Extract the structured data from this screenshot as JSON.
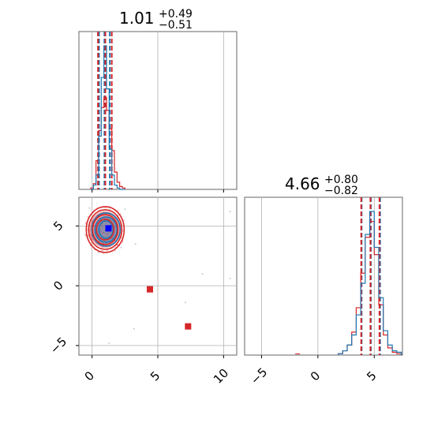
{
  "chart_data": {
    "type": "corner",
    "parameters": [
      "p0",
      "p1"
    ],
    "colors": {
      "blue": "#1f77b4",
      "red": "#d62728",
      "truth": "#0000ff",
      "grid": "#b0b0b0",
      "frame": "#666666"
    },
    "panels": {
      "p0_hist": {
        "type": "histogram",
        "title": {
          "median": "1.01",
          "plus": "+0.49",
          "minus": "−0.51"
        },
        "xlim": [
          -1.0,
          11.0
        ],
        "xticks": [
          0,
          5,
          10
        ],
        "quantile_lines": {
          "blue": [
            0.53,
            0.94,
            1.35
          ],
          "red": [
            0.45,
            1.01,
            1.5
          ]
        },
        "blue_hist": {
          "x": [
            0.0,
            0.2,
            0.4,
            0.6,
            0.8,
            1.0,
            1.2,
            1.4,
            1.6,
            1.8,
            2.0,
            2.2,
            2.4
          ],
          "y": [
            0.0,
            0.03,
            0.1,
            0.37,
            0.78,
            1.0,
            0.7,
            0.28,
            0.1,
            0.03,
            0.01,
            0.0,
            0.0
          ]
        },
        "red_hist": {
          "x": [
            0.0,
            0.2,
            0.4,
            0.6,
            0.8,
            1.0,
            1.2,
            1.4,
            1.6,
            1.8,
            2.0,
            2.2,
            2.4
          ],
          "y": [
            0.01,
            0.04,
            0.2,
            0.41,
            0.57,
            0.64,
            0.55,
            0.42,
            0.27,
            0.12,
            0.05,
            0.02,
            0.01
          ]
        }
      },
      "p1_hist": {
        "type": "histogram",
        "title": {
          "median": "4.66",
          "plus": "+0.80",
          "minus": "−0.82"
        },
        "xlim": [
          -6.5,
          7.5
        ],
        "xticks": [
          -5,
          0,
          5
        ],
        "quantile_lines": {
          "blue": [
            3.88,
            4.7,
            5.52
          ],
          "red": [
            3.84,
            4.66,
            5.46
          ]
        },
        "blue_hist": {
          "x": [
            2.0,
            2.4,
            2.8,
            3.2,
            3.6,
            4.0,
            4.4,
            4.8,
            5.2,
            5.6,
            6.0,
            6.4,
            6.8,
            7.2
          ],
          "y": [
            0.01,
            0.03,
            0.07,
            0.14,
            0.28,
            0.5,
            0.84,
            1.0,
            0.75,
            0.4,
            0.17,
            0.07,
            0.03,
            0.02
          ]
        },
        "red_hist": {
          "x": [
            2.0,
            2.4,
            2.8,
            3.2,
            3.6,
            4.0,
            4.4,
            4.8,
            5.2,
            5.6,
            6.0,
            6.4,
            6.8,
            7.2
          ],
          "y": [
            0.01,
            0.03,
            0.07,
            0.16,
            0.33,
            0.57,
            0.82,
            0.93,
            0.7,
            0.35,
            0.14,
            0.05,
            0.02,
            0.01
          ]
        },
        "outlier_x": -1.8
      },
      "p0_p1_scatter": {
        "type": "scatter",
        "xlim": [
          -1.0,
          11.0
        ],
        "ylim": [
          -5.8,
          7.4
        ],
        "xticks": [
          0,
          5,
          10
        ],
        "yticks": [
          -5,
          0,
          5
        ],
        "center": [
          1.0,
          4.7
        ],
        "red_markers": [
          [
            4.4,
            -0.3
          ],
          [
            7.3,
            -3.4
          ]
        ],
        "blue_markers": [
          [
            1.25,
            4.8
          ]
        ],
        "faint_points": [
          [
            10.5,
            6.2
          ],
          [
            10.5,
            0.6
          ],
          [
            8.4,
            1.0
          ],
          [
            2.2,
            3.2
          ],
          [
            7.1,
            -1.4
          ],
          [
            1.3,
            -4.8
          ],
          [
            3.2,
            -3.6
          ],
          [
            0.5,
            2.8
          ],
          [
            -0.2,
            6.5
          ],
          [
            2.5,
            6.4
          ],
          [
            3.3,
            3.5
          ]
        ]
      }
    }
  }
}
